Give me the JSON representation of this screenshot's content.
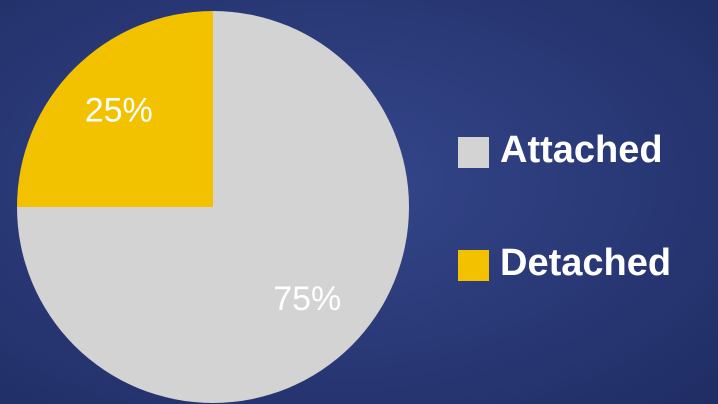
{
  "chart_data": {
    "type": "pie",
    "categories": [
      "Attached",
      "Detached"
    ],
    "values": [
      75,
      25
    ],
    "value_labels": [
      "75%",
      "25%"
    ],
    "colors": [
      "#d3d3d3",
      "#f2c200"
    ],
    "legend": "right"
  }
}
